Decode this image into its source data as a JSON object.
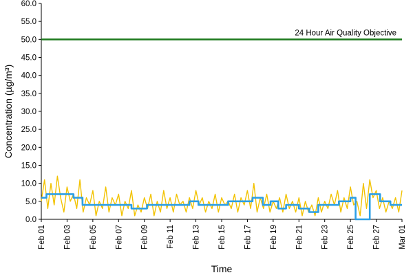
{
  "chart_data": {
    "type": "line",
    "title": "",
    "xlabel": "Time",
    "ylabel": "Concentration (µg/m³)",
    "ylim": [
      0,
      60
    ],
    "yticks": [
      "0.0",
      "5.0",
      "10.0",
      "15.0",
      "20.0",
      "25.0",
      "30.0",
      "35.0",
      "40.0",
      "45.0",
      "50.0",
      "55.0",
      "60.0"
    ],
    "xlim": [
      "Feb 01",
      "Mar 01"
    ],
    "xticks": [
      "Feb 01",
      "Feb 03",
      "Feb 05",
      "Feb 07",
      "Feb 09",
      "Feb 11",
      "Feb 13",
      "Feb 15",
      "Feb 17",
      "Feb 19",
      "Feb 21",
      "Feb 23",
      "Feb 25",
      "Feb 27",
      "Mar 01"
    ],
    "grid": false,
    "legend": "none",
    "annotation": "24 Hour Air Quality Objective",
    "series": [
      {
        "color": "#f2c200",
        "x_days": [
          0,
          0.25,
          0.5,
          0.75,
          1,
          1.25,
          1.5,
          1.75,
          2,
          2.25,
          2.5,
          2.75,
          3,
          3.25,
          3.5,
          3.75,
          4,
          4.25,
          4.5,
          4.75,
          5,
          5.25,
          5.5,
          5.75,
          6,
          6.25,
          6.5,
          6.75,
          7,
          7.25,
          7.5,
          7.75,
          8,
          8.25,
          8.5,
          8.75,
          9,
          9.25,
          9.5,
          9.75,
          10,
          10.25,
          10.5,
          10.75,
          11,
          11.25,
          11.5,
          11.75,
          12,
          12.25,
          12.5,
          12.75,
          13,
          13.25,
          13.5,
          13.75,
          14,
          14.25,
          14.5,
          14.75,
          15,
          15.25,
          15.5,
          15.75,
          16,
          16.25,
          16.5,
          16.75,
          17,
          17.25,
          17.5,
          17.75,
          18,
          18.25,
          18.5,
          18.75,
          19,
          19.25,
          19.5,
          19.75,
          20,
          20.25,
          20.5,
          20.75,
          21,
          21.25,
          21.5,
          21.75,
          22,
          22.25,
          22.5,
          22.75,
          23,
          23.25,
          23.5,
          23.75,
          24,
          24.25,
          24.5,
          24.75,
          25,
          25.25,
          25.5,
          25.75,
          26,
          26.25,
          26.5,
          26.75,
          27,
          27.25,
          27.5,
          27.75,
          28
        ],
        "values": [
          5,
          11,
          3,
          10,
          4,
          12,
          6,
          2,
          9,
          5,
          7,
          3,
          11,
          2,
          6,
          4,
          8,
          1,
          5,
          3,
          9,
          2,
          6,
          4,
          7,
          1,
          5,
          3,
          8,
          1,
          4,
          2,
          6,
          3,
          7,
          1,
          5,
          2,
          8,
          3,
          6,
          2,
          7,
          4,
          5,
          2,
          6,
          3,
          8,
          4,
          6,
          2,
          5,
          3,
          7,
          2,
          6,
          4,
          5,
          3,
          7,
          2,
          6,
          4,
          8,
          3,
          10,
          2,
          6,
          3,
          7,
          2,
          5,
          3,
          6,
          2,
          7,
          3,
          5,
          2,
          6,
          1,
          5,
          2,
          4,
          1,
          6,
          2,
          5,
          3,
          7,
          4,
          8,
          2,
          6,
          3,
          9,
          4,
          5,
          1,
          10,
          3,
          11,
          6,
          8,
          3,
          6,
          2,
          5,
          3,
          6,
          2,
          8
        ]
      },
      {
        "color": "#2b9fe6",
        "x_days": [
          0,
          0.4,
          0.4,
          2.5,
          2.5,
          3.2,
          3.2,
          5.5,
          5.5,
          7,
          7,
          8.2,
          8.2,
          9.5,
          9.5,
          11.5,
          11.5,
          12.2,
          12.2,
          13.1,
          13.1,
          14.5,
          14.5,
          16,
          16,
          16.4,
          16.4,
          17.2,
          17.2,
          17.8,
          17.8,
          18.4,
          18.4,
          19,
          19,
          20,
          20,
          20.8,
          20.8,
          21.5,
          21.5,
          22.2,
          22.2,
          23.1,
          23.1,
          24,
          24,
          24.4,
          24.4,
          25.2,
          25.2,
          25.5,
          25.5,
          26.3,
          26.3,
          27.1,
          27.1,
          28
        ],
        "values": [
          6,
          6,
          7,
          7,
          6,
          6,
          4,
          4,
          4,
          4,
          3,
          3,
          4,
          4,
          4,
          4,
          5,
          5,
          4,
          4,
          4,
          4,
          5,
          5,
          5,
          5,
          6,
          6,
          4,
          4,
          5,
          5,
          3,
          3,
          4,
          4,
          3,
          3,
          2,
          2,
          4,
          4,
          4,
          4,
          5,
          5,
          6,
          6,
          0,
          0,
          0,
          0,
          7,
          7,
          5,
          5,
          4,
          4
        ]
      },
      {
        "color": "#1f7a1f",
        "x_days": [
          0,
          28
        ],
        "values": [
          50,
          50
        ]
      }
    ]
  }
}
